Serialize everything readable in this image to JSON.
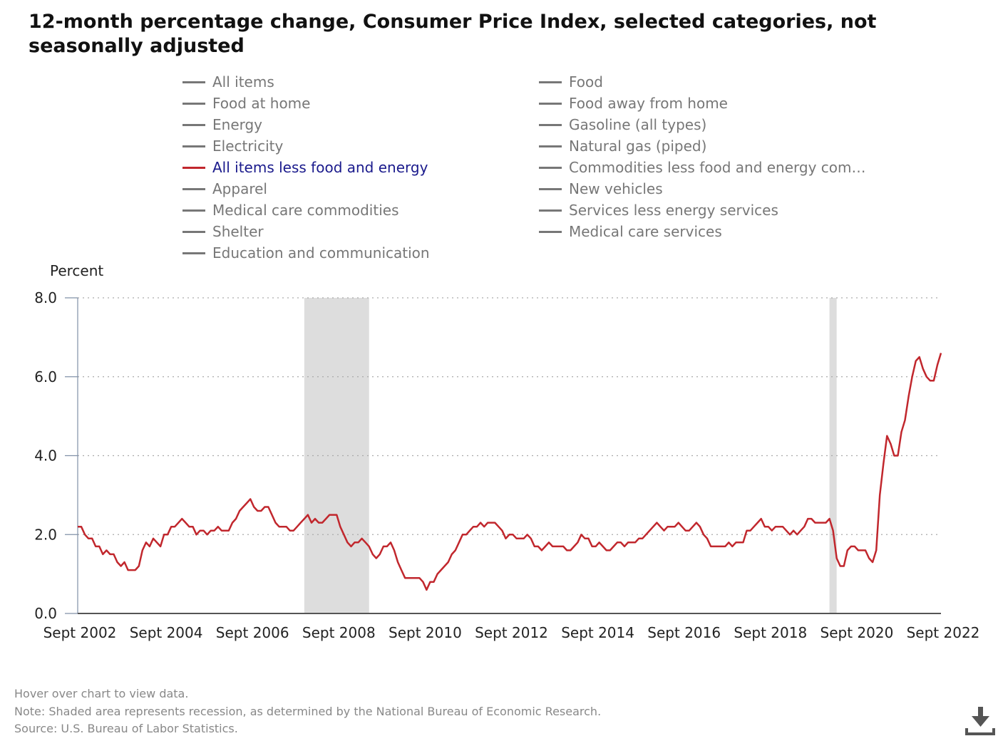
{
  "title": "12-month percentage change, Consumer Price Index, selected categories, not seasonally adjusted",
  "legend": [
    {
      "label": "All items",
      "active": false
    },
    {
      "label": "Food",
      "active": false
    },
    {
      "label": "Food at home",
      "active": false
    },
    {
      "label": "Food away from home",
      "active": false
    },
    {
      "label": "Energy",
      "active": false
    },
    {
      "label": "Gasoline (all types)",
      "active": false
    },
    {
      "label": "Electricity",
      "active": false
    },
    {
      "label": "Natural gas (piped)",
      "active": false
    },
    {
      "label": "All items less food and energy",
      "active": true
    },
    {
      "label": "Commodities less food and energy com…",
      "active": false
    },
    {
      "label": "Apparel",
      "active": false
    },
    {
      "label": "New vehicles",
      "active": false
    },
    {
      "label": "Medical care commodities",
      "active": false
    },
    {
      "label": "Services less energy services",
      "active": false
    },
    {
      "label": "Shelter",
      "active": false
    },
    {
      "label": "Medical care services",
      "active": false
    },
    {
      "label": "Education and communication",
      "active": false
    }
  ],
  "notes": {
    "hover": "Hover over chart to view data.",
    "note": "Note: Shaded area represents recession, as determined by the National Bureau of Economic Research.",
    "source": "Source: U.S. Bureau of Labor Statistics."
  },
  "icons": {
    "download": "download-icon"
  },
  "colors": {
    "series": "#c1272d",
    "recession": "#dddddd",
    "inactive_legend": "#777777",
    "active_legend_text": "#1a1a8c"
  },
  "chart_data": {
    "type": "line",
    "ylabel": "Percent",
    "ylim": [
      0,
      8
    ],
    "yticks": [
      "0.0",
      "2.0",
      "4.0",
      "6.0",
      "8.0"
    ],
    "xticks": [
      "Sept 2002",
      "Sept 2004",
      "Sept 2006",
      "Sept 2008",
      "Sept 2010",
      "Sept 2012",
      "Sept 2014",
      "Sept 2016",
      "Sept 2018",
      "Sept 2020",
      "Sept 2022"
    ],
    "x_range": [
      "2002-09",
      "2022-09"
    ],
    "grid": "horizontal dotted",
    "recessions": [
      {
        "start": "2007-12",
        "end": "2009-06"
      },
      {
        "start": "2020-02",
        "end": "2020-04"
      }
    ],
    "series": [
      {
        "name": "All items less food and energy",
        "color": "#c1272d",
        "start": "2002-09",
        "frequency": "monthly",
        "values": [
          2.2,
          2.2,
          2.0,
          1.9,
          1.9,
          1.7,
          1.7,
          1.5,
          1.6,
          1.5,
          1.5,
          1.3,
          1.2,
          1.3,
          1.1,
          1.1,
          1.1,
          1.2,
          1.6,
          1.8,
          1.7,
          1.9,
          1.8,
          1.7,
          2.0,
          2.0,
          2.2,
          2.2,
          2.3,
          2.4,
          2.3,
          2.2,
          2.2,
          2.0,
          2.1,
          2.1,
          2.0,
          2.1,
          2.1,
          2.2,
          2.1,
          2.1,
          2.1,
          2.3,
          2.4,
          2.6,
          2.7,
          2.8,
          2.9,
          2.7,
          2.6,
          2.6,
          2.7,
          2.7,
          2.5,
          2.3,
          2.2,
          2.2,
          2.2,
          2.1,
          2.1,
          2.2,
          2.3,
          2.4,
          2.5,
          2.3,
          2.4,
          2.3,
          2.3,
          2.4,
          2.5,
          2.5,
          2.5,
          2.2,
          2.0,
          1.8,
          1.7,
          1.8,
          1.8,
          1.9,
          1.8,
          1.7,
          1.5,
          1.4,
          1.5,
          1.7,
          1.7,
          1.8,
          1.6,
          1.3,
          1.1,
          0.9,
          0.9,
          0.9,
          0.9,
          0.9,
          0.8,
          0.6,
          0.8,
          0.8,
          1.0,
          1.1,
          1.2,
          1.3,
          1.5,
          1.6,
          1.8,
          2.0,
          2.0,
          2.1,
          2.2,
          2.2,
          2.3,
          2.2,
          2.3,
          2.3,
          2.3,
          2.2,
          2.1,
          1.9,
          2.0,
          2.0,
          1.9,
          1.9,
          1.9,
          2.0,
          1.9,
          1.7,
          1.7,
          1.6,
          1.7,
          1.8,
          1.7,
          1.7,
          1.7,
          1.7,
          1.6,
          1.6,
          1.7,
          1.8,
          2.0,
          1.9,
          1.9,
          1.7,
          1.7,
          1.8,
          1.7,
          1.6,
          1.6,
          1.7,
          1.8,
          1.8,
          1.7,
          1.8,
          1.8,
          1.8,
          1.9,
          1.9,
          2.0,
          2.1,
          2.2,
          2.3,
          2.2,
          2.1,
          2.2,
          2.2,
          2.2,
          2.3,
          2.2,
          2.1,
          2.1,
          2.2,
          2.3,
          2.2,
          2.0,
          1.9,
          1.7,
          1.7,
          1.7,
          1.7,
          1.7,
          1.8,
          1.7,
          1.8,
          1.8,
          1.8,
          2.1,
          2.1,
          2.2,
          2.3,
          2.4,
          2.2,
          2.2,
          2.1,
          2.2,
          2.2,
          2.2,
          2.1,
          2.0,
          2.1,
          2.0,
          2.1,
          2.2,
          2.4,
          2.4,
          2.3,
          2.3,
          2.3,
          2.3,
          2.4,
          2.1,
          1.4,
          1.2,
          1.2,
          1.6,
          1.7,
          1.7,
          1.6,
          1.6,
          1.6,
          1.4,
          1.3,
          1.6,
          3.0,
          3.8,
          4.5,
          4.3,
          4.0,
          4.0,
          4.6,
          4.9,
          5.5,
          6.0,
          6.4,
          6.5,
          6.2,
          6.0,
          5.9,
          5.9,
          6.3,
          6.6
        ]
      }
    ]
  }
}
